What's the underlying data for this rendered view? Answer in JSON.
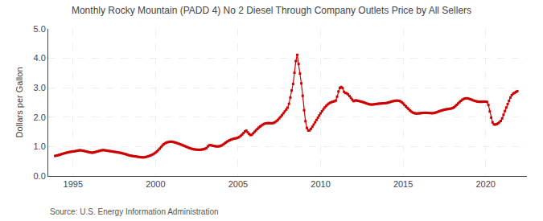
{
  "chart_data": {
    "type": "line",
    "title": "Monthly Rocky Mountain (PADD 4) No 2 Diesel Through Company Outlets Price by All Sellers",
    "ylabel": "Dollars per Gallon",
    "source": "Source: U.S. Energy Information Administration",
    "color": "#cc0000",
    "marker": "square",
    "line_style": "solid",
    "grid": true,
    "xlim": [
      1993.5,
      2022.5
    ],
    "xticks": [
      1995,
      2000,
      2005,
      2010,
      2015,
      2020
    ],
    "ylim": [
      0.0,
      5.0
    ],
    "yticks": [
      {
        "value": 0.0,
        "label": "0.0"
      },
      {
        "value": 1.0,
        "label": "1.0"
      },
      {
        "value": 2.0,
        "label": "2.0"
      },
      {
        "value": 3.0,
        "label": "3.0"
      },
      {
        "value": 4.0,
        "label": "4.0"
      },
      {
        "value": 5.0,
        "label": "5.0"
      }
    ],
    "x": [
      1993.917,
      1994.0,
      1994.083,
      1994.167,
      1994.25,
      1994.333,
      1994.417,
      1994.5,
      1994.583,
      1994.667,
      1994.75,
      1994.833,
      1994.917,
      1995.0,
      1995.083,
      1995.167,
      1995.25,
      1995.333,
      1995.417,
      1995.5,
      1995.583,
      1995.667,
      1995.75,
      1995.833,
      1995.917,
      1996.0,
      1996.083,
      1996.167,
      1996.25,
      1996.333,
      1996.417,
      1996.5,
      1996.583,
      1996.667,
      1996.75,
      1996.833,
      1996.917,
      1997.0,
      1997.083,
      1997.167,
      1997.25,
      1997.333,
      1997.417,
      1997.5,
      1997.583,
      1997.667,
      1997.75,
      1997.833,
      1997.917,
      1998.0,
      1998.083,
      1998.167,
      1998.25,
      1998.333,
      1998.417,
      1998.5,
      1998.583,
      1998.667,
      1998.75,
      1998.833,
      1998.917,
      1999.0,
      1999.083,
      1999.167,
      1999.25,
      1999.333,
      1999.417,
      1999.5,
      1999.583,
      1999.667,
      1999.75,
      1999.833,
      1999.917,
      2000.0,
      2000.083,
      2000.167,
      2000.25,
      2000.333,
      2000.417,
      2000.5,
      2000.583,
      2000.667,
      2000.75,
      2000.833,
      2000.917,
      2001.0,
      2001.083,
      2001.167,
      2001.25,
      2001.333,
      2001.417,
      2001.5,
      2001.583,
      2001.667,
      2001.75,
      2001.833,
      2001.917,
      2002.0,
      2002.083,
      2002.167,
      2002.25,
      2002.333,
      2002.417,
      2002.5,
      2002.583,
      2002.667,
      2002.75,
      2002.833,
      2002.917,
      2003.0,
      2003.083,
      2003.167,
      2003.25,
      2003.333,
      2003.417,
      2003.5,
      2003.583,
      2003.667,
      2003.75,
      2003.833,
      2003.917,
      2004.0,
      2004.083,
      2004.167,
      2004.25,
      2004.333,
      2004.417,
      2004.5,
      2004.583,
      2004.667,
      2004.75,
      2004.833,
      2004.917,
      2005.0,
      2005.083,
      2005.167,
      2005.25,
      2005.333,
      2005.417,
      2005.5,
      2005.583,
      2005.667,
      2005.75,
      2005.833,
      2005.917,
      2006.0,
      2006.083,
      2006.167,
      2006.25,
      2006.333,
      2006.417,
      2006.5,
      2006.583,
      2006.667,
      2006.75,
      2006.833,
      2006.917,
      2007.0,
      2007.083,
      2007.167,
      2007.25,
      2007.333,
      2007.417,
      2007.5,
      2007.583,
      2007.667,
      2007.75,
      2007.833,
      2007.917,
      2008.0,
      2008.083,
      2008.167,
      2008.25,
      2008.333,
      2008.417,
      2008.5,
      2008.583,
      2008.667,
      2008.75,
      2008.833,
      2008.917,
      2009.0,
      2009.083,
      2009.167,
      2009.25,
      2009.333,
      2009.417,
      2009.5,
      2009.583,
      2009.667,
      2009.75,
      2009.833,
      2009.917,
      2010.0,
      2010.083,
      2010.167,
      2010.25,
      2010.333,
      2010.417,
      2010.5,
      2010.583,
      2010.667,
      2010.75,
      2010.833,
      2010.917,
      2011.0,
      2011.083,
      2011.167,
      2011.25,
      2011.333,
      2011.417,
      2011.5,
      2011.583,
      2011.667,
      2011.75,
      2011.833,
      2011.917,
      2012.0,
      2012.083,
      2012.167,
      2012.25,
      2012.333,
      2012.417,
      2012.5,
      2012.583,
      2012.667,
      2012.75,
      2012.833,
      2012.917,
      2013.0,
      2013.083,
      2013.167,
      2013.25,
      2013.333,
      2013.417,
      2013.5,
      2013.583,
      2013.667,
      2013.75,
      2013.833,
      2013.917,
      2014.0,
      2014.083,
      2014.167,
      2014.25,
      2014.333,
      2014.417,
      2014.5,
      2014.583,
      2014.667,
      2014.75,
      2014.833,
      2014.917,
      2015.0,
      2015.083,
      2015.167,
      2015.25,
      2015.333,
      2015.417,
      2015.5,
      2015.583,
      2015.667,
      2015.75,
      2015.833,
      2015.917,
      2016.0,
      2016.083,
      2016.167,
      2016.25,
      2016.333,
      2016.417,
      2016.5,
      2016.583,
      2016.667,
      2016.75,
      2016.833,
      2016.917,
      2017.0,
      2017.083,
      2017.167,
      2017.25,
      2017.333,
      2017.417,
      2017.5,
      2017.583,
      2017.667,
      2017.75,
      2017.833,
      2017.917,
      2018.0,
      2018.083,
      2018.167,
      2018.25,
      2018.333,
      2018.417,
      2018.5,
      2018.583,
      2018.667,
      2018.75,
      2018.833,
      2018.917,
      2019.0,
      2019.083,
      2019.167,
      2019.25,
      2019.333,
      2019.417,
      2019.5,
      2019.583,
      2019.667,
      2019.75,
      2019.833,
      2019.917,
      2020.0,
      2020.083,
      2020.167,
      2020.25,
      2020.333,
      2020.417,
      2020.5,
      2020.583,
      2020.667,
      2020.75,
      2020.833,
      2020.917,
      2021.0,
      2021.083,
      2021.167,
      2021.25,
      2021.333,
      2021.417,
      2021.5,
      2021.583,
      2021.667,
      2021.75,
      2021.833,
      2021.917
    ],
    "values": [
      0.682,
      0.695,
      0.705,
      0.718,
      0.732,
      0.748,
      0.762,
      0.775,
      0.788,
      0.8,
      0.812,
      0.82,
      0.828,
      0.832,
      0.84,
      0.848,
      0.858,
      0.868,
      0.875,
      0.87,
      0.86,
      0.852,
      0.84,
      0.828,
      0.818,
      0.808,
      0.798,
      0.792,
      0.8,
      0.812,
      0.825,
      0.838,
      0.852,
      0.865,
      0.875,
      0.88,
      0.875,
      0.868,
      0.86,
      0.852,
      0.845,
      0.838,
      0.83,
      0.822,
      0.815,
      0.808,
      0.8,
      0.792,
      0.782,
      0.77,
      0.758,
      0.745,
      0.73,
      0.715,
      0.7,
      0.69,
      0.682,
      0.675,
      0.668,
      0.662,
      0.655,
      0.648,
      0.64,
      0.635,
      0.632,
      0.638,
      0.648,
      0.66,
      0.675,
      0.692,
      0.712,
      0.735,
      0.762,
      0.795,
      0.835,
      0.88,
      0.932,
      0.985,
      1.038,
      1.082,
      1.115,
      1.138,
      1.152,
      1.16,
      1.168,
      1.165,
      1.155,
      1.142,
      1.128,
      1.112,
      1.095,
      1.078,
      1.06,
      1.042,
      1.022,
      1.002,
      0.982,
      0.962,
      0.945,
      0.93,
      0.918,
      0.908,
      0.9,
      0.895,
      0.892,
      0.892,
      0.895,
      0.902,
      0.912,
      0.928,
      0.948,
      1.005,
      1.045,
      1.048,
      1.038,
      1.025,
      1.015,
      1.008,
      1.005,
      1.008,
      1.018,
      1.038,
      1.065,
      1.098,
      1.135,
      1.168,
      1.195,
      1.218,
      1.238,
      1.255,
      1.268,
      1.278,
      1.288,
      1.305,
      1.332,
      1.368,
      1.412,
      1.462,
      1.515,
      1.545,
      1.485,
      1.428,
      1.392,
      1.405,
      1.452,
      1.502,
      1.552,
      1.598,
      1.642,
      1.682,
      1.718,
      1.748,
      1.772,
      1.788,
      1.795,
      1.798,
      1.795,
      1.792,
      1.795,
      1.808,
      1.832,
      1.868,
      1.912,
      1.962,
      2.015,
      2.072,
      2.132,
      2.195,
      2.258,
      2.322,
      2.455,
      2.668,
      2.908,
      3.128,
      3.512,
      3.908,
      4.118,
      3.808,
      3.482,
      3.148,
      2.728,
      2.235,
      1.862,
      1.635,
      1.548,
      1.552,
      1.605,
      1.672,
      1.748,
      1.828,
      1.905,
      1.982,
      2.058,
      2.132,
      2.202,
      2.268,
      2.328,
      2.382,
      2.428,
      2.465,
      2.492,
      2.512,
      2.528,
      2.542,
      2.562,
      2.698,
      2.875,
      2.995,
      3.028,
      2.988,
      2.862,
      2.822,
      2.812,
      2.775,
      2.718,
      2.658,
      2.595,
      2.545,
      2.568,
      2.568,
      2.558,
      2.548,
      2.535,
      2.522,
      2.508,
      2.492,
      2.475,
      2.458,
      2.442,
      2.432,
      2.428,
      2.432,
      2.438,
      2.445,
      2.452,
      2.458,
      2.462,
      2.465,
      2.468,
      2.472,
      2.475,
      2.482,
      2.495,
      2.508,
      2.522,
      2.535,
      2.548,
      2.558,
      2.562,
      2.562,
      2.555,
      2.538,
      2.508,
      2.465,
      2.415,
      2.365,
      2.318,
      2.272,
      2.228,
      2.188,
      2.158,
      2.138,
      2.128,
      2.125,
      2.128,
      2.132,
      2.138,
      2.142,
      2.145,
      2.148,
      2.148,
      2.145,
      2.142,
      2.138,
      2.135,
      2.138,
      2.148,
      2.162,
      2.178,
      2.195,
      2.212,
      2.228,
      2.242,
      2.255,
      2.265,
      2.272,
      2.278,
      2.285,
      2.295,
      2.312,
      2.338,
      2.375,
      2.418,
      2.465,
      2.512,
      2.555,
      2.592,
      2.618,
      2.635,
      2.642,
      2.638,
      2.625,
      2.608,
      2.59,
      2.572,
      2.555,
      2.542,
      2.532,
      2.525,
      2.522,
      2.522,
      2.525,
      2.528,
      2.528,
      2.518,
      2.415,
      2.195,
      1.985,
      1.825,
      1.755,
      1.748,
      1.762,
      1.792,
      1.828,
      1.872,
      1.958,
      2.082,
      2.208,
      2.328,
      2.445,
      2.558,
      2.668,
      2.748,
      2.798,
      2.825,
      2.855,
      2.882
    ]
  }
}
